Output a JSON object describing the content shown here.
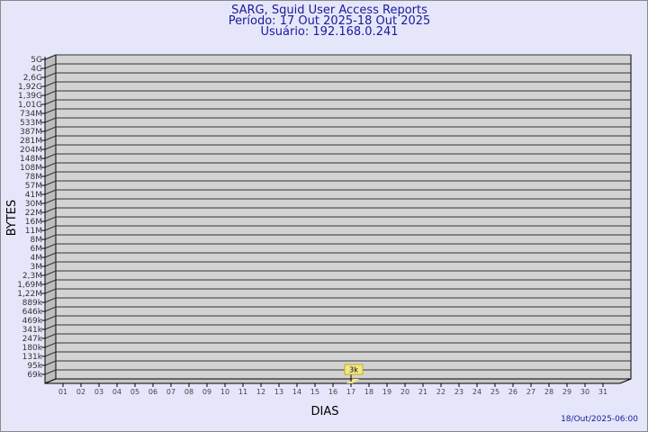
{
  "header": {
    "title": "SARG, Squid User Access Reports",
    "period": "Período: 17 Out 2025-18 Out 2025",
    "user": "Usuário: 192.168.0.241"
  },
  "footer": {
    "timestamp": "18/Out/2025-06:00"
  },
  "chart_data": {
    "type": "bar",
    "title": "SARG, Squid User Access Reports",
    "xlabel": "DIAS",
    "ylabel": "BYTES",
    "y_scale": "log",
    "grid": true,
    "y_ticks": [
      "5G",
      "4G",
      "2,6G",
      "1,92G",
      "1,39G",
      "1,01G",
      "734M",
      "533M",
      "387M",
      "281M",
      "204M",
      "148M",
      "108M",
      "78M",
      "57M",
      "41M",
      "30M",
      "22M",
      "16M",
      "11M",
      "8M",
      "6M",
      "4M",
      "3M",
      "2,3M",
      "1,69M",
      "1,22M",
      "889k",
      "646k",
      "469k",
      "341k",
      "247k",
      "180k",
      "131k",
      "95k",
      "69k"
    ],
    "categories": [
      "01",
      "02",
      "03",
      "04",
      "05",
      "06",
      "07",
      "08",
      "09",
      "10",
      "11",
      "12",
      "13",
      "14",
      "15",
      "16",
      "17",
      "18",
      "19",
      "20",
      "21",
      "22",
      "23",
      "24",
      "25",
      "26",
      "27",
      "28",
      "29",
      "30",
      "31"
    ],
    "series": [
      {
        "points": [
          {
            "x": "17",
            "value": 3000,
            "label": "3k"
          }
        ]
      }
    ],
    "colors": {
      "background": "#e6e6fa",
      "plot": "#d3d3d3",
      "bar": "#f0e68c",
      "text": "#1a1a9a"
    }
  }
}
